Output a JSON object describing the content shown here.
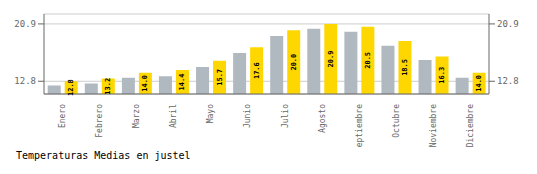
{
  "chart_data": {
    "type": "bar",
    "title": "Temperaturas Medias en justel",
    "categories": [
      "Enero",
      "Febrero",
      "Marzo",
      "Abril",
      "Mayo",
      "Junio",
      "Julio",
      "Agosto",
      "Septiembre",
      "Octubre",
      "Noviembre",
      "Diciembre"
    ],
    "series": [
      {
        "color": "#B0B8C0",
        "values": [
          12.2,
          12.5,
          13.3,
          13.5,
          14.8,
          16.8,
          19.2,
          20.2,
          19.8,
          17.8,
          15.8,
          13.3
        ]
      },
      {
        "color": "#FFD700",
        "values": [
          12.8,
          13.2,
          14.0,
          14.4,
          15.7,
          17.6,
          20.0,
          20.9,
          20.5,
          18.5,
          16.3,
          14.0
        ],
        "value_labels": [
          "12.8",
          "13.2",
          "14.0",
          "14.4",
          "15.7",
          "17.6",
          "20.0",
          "20.9",
          "20.5",
          "18.5",
          "16.3",
          "14.0"
        ],
        "data_labels": true
      }
    ],
    "ylim": [
      11.0,
      22.3
    ],
    "yticks": [
      12.8,
      20.9
    ],
    "y2lim": [
      11.0,
      22.3
    ],
    "y2ticks": [
      12.8,
      20.9
    ],
    "grid": true
  }
}
